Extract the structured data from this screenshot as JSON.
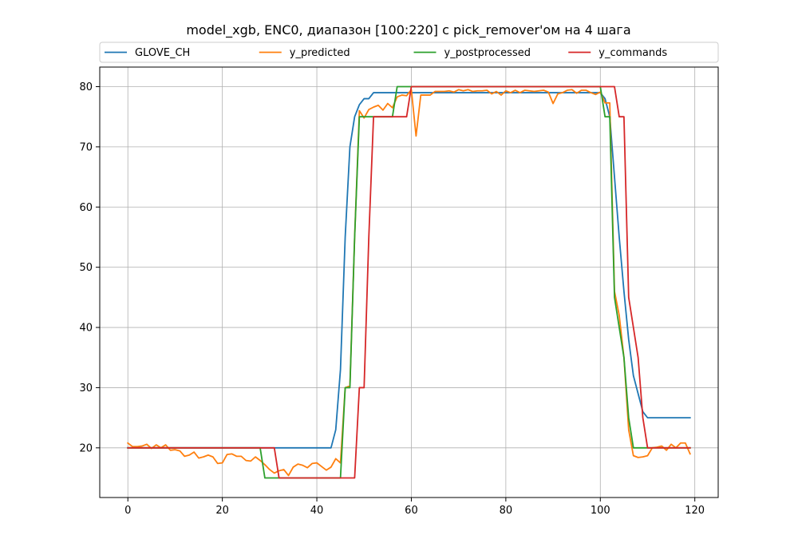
{
  "chart_data": {
    "type": "line",
    "title": "model_xgb, ENC0, диапазон [100:220] с pick_remover'ом на 4 шага",
    "xlabel": "",
    "ylabel": "",
    "xlim": [
      -5.95,
      124.95
    ],
    "ylim": [
      11.75,
      83.25
    ],
    "xticks": [
      0,
      20,
      40,
      60,
      80,
      100,
      120
    ],
    "yticks": [
      20,
      30,
      40,
      50,
      60,
      70,
      80
    ],
    "grid": true,
    "legend": "top, outside plot, 4 columns",
    "series": [
      {
        "name": "GLOVE_CH",
        "color": "#1f77b4",
        "x": [
          0,
          1,
          2,
          3,
          4,
          5,
          6,
          7,
          8,
          9,
          10,
          11,
          12,
          13,
          14,
          15,
          16,
          17,
          18,
          19,
          20,
          21,
          22,
          23,
          24,
          25,
          26,
          27,
          28,
          29,
          30,
          31,
          32,
          33,
          34,
          35,
          36,
          37,
          38,
          39,
          40,
          41,
          42,
          43,
          44,
          45,
          46,
          47,
          48,
          49,
          50,
          51,
          52,
          53,
          54,
          55,
          56,
          57,
          58,
          59,
          60,
          61,
          62,
          63,
          64,
          65,
          66,
          67,
          68,
          69,
          70,
          71,
          72,
          73,
          74,
          75,
          76,
          77,
          78,
          79,
          80,
          81,
          82,
          83,
          84,
          85,
          86,
          87,
          88,
          89,
          90,
          91,
          92,
          93,
          94,
          95,
          96,
          97,
          98,
          99,
          100,
          101,
          102,
          103,
          104,
          105,
          106,
          107,
          108,
          109,
          110,
          111,
          112,
          113,
          114,
          115,
          116,
          117,
          118,
          119
        ],
        "y": [
          20,
          20,
          20,
          20,
          20,
          20,
          20,
          20,
          20,
          20,
          20,
          20,
          20,
          20,
          20,
          20,
          20,
          20,
          20,
          20,
          20,
          20,
          20,
          20,
          20,
          20,
          20,
          20,
          20,
          20,
          20,
          20,
          20,
          20,
          20,
          20,
          20,
          20,
          20,
          20,
          20,
          20,
          20,
          20,
          23,
          33,
          55,
          70,
          75,
          77,
          78,
          78,
          79,
          79,
          79,
          79,
          79,
          79,
          79,
          79,
          79,
          79,
          79,
          79,
          79,
          79,
          79,
          79,
          79,
          79,
          79,
          79,
          79,
          79,
          79,
          79,
          79,
          79,
          79,
          79,
          79,
          79,
          79,
          79,
          79,
          79,
          79,
          79,
          79,
          79,
          79,
          79,
          79,
          79,
          79,
          79,
          79,
          79,
          79,
          79,
          79,
          78,
          75,
          65,
          55,
          46,
          38,
          32,
          29,
          26,
          25,
          25,
          25,
          25,
          25,
          25,
          25,
          25,
          25,
          25
        ]
      },
      {
        "name": "y_predicted",
        "color": "#ff7f0e",
        "x": [
          0,
          1,
          2,
          3,
          4,
          5,
          6,
          7,
          8,
          9,
          10,
          11,
          12,
          13,
          14,
          15,
          16,
          17,
          18,
          19,
          20,
          21,
          22,
          23,
          24,
          25,
          26,
          27,
          28,
          29,
          30,
          31,
          32,
          33,
          34,
          35,
          36,
          37,
          38,
          39,
          40,
          41,
          42,
          43,
          44,
          45,
          46,
          47,
          48,
          49,
          50,
          51,
          52,
          53,
          54,
          55,
          56,
          57,
          58,
          59,
          60,
          61,
          62,
          63,
          64,
          65,
          66,
          67,
          68,
          69,
          70,
          71,
          72,
          73,
          74,
          75,
          76,
          77,
          78,
          79,
          80,
          81,
          82,
          83,
          84,
          85,
          86,
          87,
          88,
          89,
          90,
          91,
          92,
          93,
          94,
          95,
          96,
          97,
          98,
          99,
          100,
          101,
          102,
          103,
          104,
          105,
          106,
          107,
          108,
          109,
          110,
          111,
          112,
          113,
          114,
          115,
          116,
          117,
          118,
          119
        ],
        "y": [
          20.8,
          20.2,
          20.2,
          20.3,
          20.6,
          19.9,
          20.5,
          20.0,
          20.5,
          19.6,
          19.7,
          19.5,
          18.6,
          18.8,
          19.3,
          18.3,
          18.5,
          18.8,
          18.5,
          17.4,
          17.5,
          18.9,
          19.0,
          18.6,
          18.6,
          17.9,
          17.8,
          18.5,
          17.9,
          17.2,
          16.4,
          15.8,
          16.2,
          16.4,
          15.4,
          16.8,
          17.3,
          17.1,
          16.7,
          17.4,
          17.5,
          16.9,
          16.3,
          16.8,
          18.2,
          17.5,
          30.0,
          30.3,
          55.0,
          76.0,
          74.8,
          76.2,
          76.6,
          76.9,
          76.1,
          77.2,
          76.5,
          78.3,
          78.6,
          78.5,
          79.5,
          71.8,
          78.6,
          78.6,
          78.6,
          79.2,
          79.2,
          79.2,
          79.3,
          79.1,
          79.5,
          79.3,
          79.5,
          79.2,
          79.3,
          79.3,
          79.4,
          78.8,
          79.2,
          78.6,
          79.3,
          79.0,
          79.4,
          79.0,
          79.4,
          79.3,
          79.2,
          79.3,
          79.4,
          79.1,
          77.2,
          78.8,
          79.0,
          79.4,
          79.5,
          78.9,
          79.4,
          79.4,
          79.0,
          78.7,
          79.1,
          77.3,
          77.3,
          46.0,
          42.0,
          35.0,
          23.0,
          18.7,
          18.4,
          18.5,
          18.7,
          20.0,
          20.1,
          20.3,
          19.6,
          20.6,
          20.0,
          20.8,
          20.8,
          19.0
        ]
      },
      {
        "name": "y_postprocessed",
        "color": "#2ca02c",
        "x": [
          0,
          1,
          2,
          3,
          4,
          5,
          6,
          7,
          8,
          9,
          10,
          11,
          12,
          13,
          14,
          15,
          16,
          17,
          18,
          19,
          20,
          21,
          22,
          23,
          24,
          25,
          26,
          27,
          28,
          29,
          30,
          31,
          32,
          33,
          34,
          35,
          36,
          37,
          38,
          39,
          40,
          41,
          42,
          43,
          44,
          45,
          46,
          47,
          48,
          49,
          50,
          51,
          52,
          53,
          54,
          55,
          56,
          57,
          58,
          59,
          60,
          61,
          62,
          63,
          64,
          65,
          66,
          67,
          68,
          69,
          70,
          71,
          72,
          73,
          74,
          75,
          76,
          77,
          78,
          79,
          80,
          81,
          82,
          83,
          84,
          85,
          86,
          87,
          88,
          89,
          90,
          91,
          92,
          93,
          94,
          95,
          96,
          97,
          98,
          99,
          100,
          101,
          102,
          103,
          104,
          105,
          106,
          107,
          108,
          109,
          110,
          111,
          112,
          113,
          114,
          115,
          116,
          117,
          118,
          119
        ],
        "y": [
          20,
          20,
          20,
          20,
          20,
          20,
          20,
          20,
          20,
          20,
          20,
          20,
          20,
          20,
          20,
          20,
          20,
          20,
          20,
          20,
          20,
          20,
          20,
          20,
          20,
          20,
          20,
          20,
          20,
          15,
          15,
          15,
          15,
          15,
          15,
          15,
          15,
          15,
          15,
          15,
          15,
          15,
          15,
          15,
          15,
          15,
          30,
          30,
          55,
          75,
          75,
          75,
          75,
          75,
          75,
          75,
          75,
          80,
          80,
          80,
          80,
          80,
          80,
          80,
          80,
          80,
          80,
          80,
          80,
          80,
          80,
          80,
          80,
          80,
          80,
          80,
          80,
          80,
          80,
          80,
          80,
          80,
          80,
          80,
          80,
          80,
          80,
          80,
          80,
          80,
          80,
          80,
          80,
          80,
          80,
          80,
          80,
          80,
          80,
          80,
          80,
          75,
          75,
          45,
          40,
          35,
          25,
          20,
          20,
          20,
          20,
          20,
          20,
          20,
          20,
          20,
          20,
          20,
          20,
          20
        ]
      },
      {
        "name": "y_commands",
        "color": "#d62728",
        "x": [
          0,
          1,
          2,
          3,
          4,
          5,
          6,
          7,
          8,
          9,
          10,
          11,
          12,
          13,
          14,
          15,
          16,
          17,
          18,
          19,
          20,
          21,
          22,
          23,
          24,
          25,
          26,
          27,
          28,
          29,
          30,
          31,
          32,
          33,
          34,
          35,
          36,
          37,
          38,
          39,
          40,
          41,
          42,
          43,
          44,
          45,
          46,
          47,
          48,
          49,
          50,
          51,
          52,
          53,
          54,
          55,
          56,
          57,
          58,
          59,
          60,
          61,
          62,
          63,
          64,
          65,
          66,
          67,
          68,
          69,
          70,
          71,
          72,
          73,
          74,
          75,
          76,
          77,
          78,
          79,
          80,
          81,
          82,
          83,
          84,
          85,
          86,
          87,
          88,
          89,
          90,
          91,
          92,
          93,
          94,
          95,
          96,
          97,
          98,
          99,
          100,
          101,
          102,
          103,
          104,
          105,
          106,
          107,
          108,
          109,
          110,
          111,
          112,
          113,
          114,
          115,
          116,
          117,
          118,
          119
        ],
        "y": [
          20,
          20,
          20,
          20,
          20,
          20,
          20,
          20,
          20,
          20,
          20,
          20,
          20,
          20,
          20,
          20,
          20,
          20,
          20,
          20,
          20,
          20,
          20,
          20,
          20,
          20,
          20,
          20,
          20,
          20,
          20,
          20,
          15,
          15,
          15,
          15,
          15,
          15,
          15,
          15,
          15,
          15,
          15,
          15,
          15,
          15,
          15,
          15,
          15,
          30,
          30,
          55,
          75,
          75,
          75,
          75,
          75,
          75,
          75,
          75,
          80,
          80,
          80,
          80,
          80,
          80,
          80,
          80,
          80,
          80,
          80,
          80,
          80,
          80,
          80,
          80,
          80,
          80,
          80,
          80,
          80,
          80,
          80,
          80,
          80,
          80,
          80,
          80,
          80,
          80,
          80,
          80,
          80,
          80,
          80,
          80,
          80,
          80,
          80,
          80,
          80,
          80,
          80,
          80,
          75,
          75,
          45,
          40,
          35,
          25,
          20,
          20,
          20,
          20,
          20,
          20,
          20,
          20,
          20,
          20
        ]
      }
    ]
  }
}
